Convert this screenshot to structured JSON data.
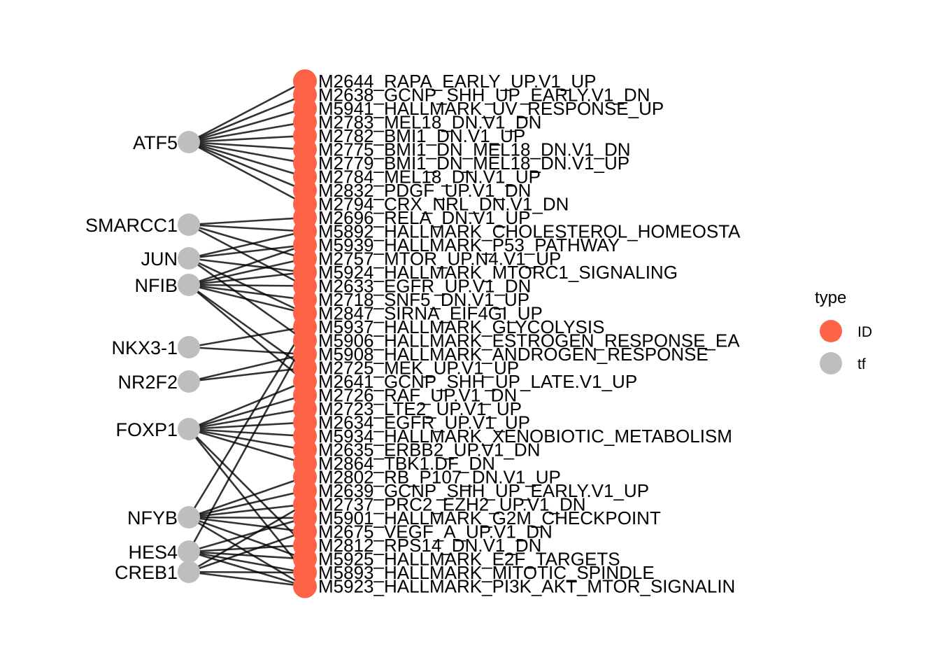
{
  "colors": {
    "id": "#FF6347",
    "tf": "#BEBEBE",
    "edge": "#000000"
  },
  "legend": {
    "title": "type",
    "items": [
      {
        "label": "ID",
        "color": "#FF6347"
      },
      {
        "label": "tf",
        "color": "#BEBEBE"
      }
    ]
  },
  "tf_nodes": [
    "ATF5",
    "SMARCC1",
    "JUN",
    "NFIB",
    "NKX3-1",
    "NR2F2",
    "FOXP1",
    "NFYB",
    "HES4",
    "CREB1"
  ],
  "id_nodes": [
    "M2644_RAPA_EARLY_UP.V1_UP",
    "M2638_GCNP_SHH_UP_EARLY.V1_DN",
    "M5941_HALLMARK_UV_RESPONSE_UP",
    "M2783_MEL18_DN.V1_DN",
    "M2782_BMI1_DN.V1_UP",
    "M2775_BMI1_DN_MEL18_DN.V1_DN",
    "M2779_BMI1_DN_MEL18_DN.V1_UP",
    "M2784_MEL18_DN.V1_UP",
    "M2832_PDGF_UP.V1_DN",
    "M2794_CRX_NRL_DN.V1_DN",
    "M2696_RELA_DN.V1_UP",
    "M5892_HALLMARK_CHOLESTEROL_HOMEOSTA",
    "M5939_HALLMARK_P53_PATHWAY",
    "M2757_MTOR_UP.N4.V1_UP",
    "M5924_HALLMARK_MTORC1_SIGNALING",
    "M2633_EGFR_UP.V1_DN",
    "M2718_SNF5_DN.V1_UP",
    "M2847_SIRNA_EIF4GI_UP",
    "M5937_HALLMARK_GLYCOLYSIS",
    "M5906_HALLMARK_ESTROGEN_RESPONSE_EA",
    "M5908_HALLMARK_ANDROGEN_RESPONSE",
    "M2725_MEK_UP.V1_UP",
    "M2641_GCNP_SHH_UP_LATE.V1_UP",
    "M2726_RAF_UP.V1_DN",
    "M2723_LTE2_UP.V1_UP",
    "M2634_EGFR_UP.V1_UP",
    "M5934_HALLMARK_XENOBIOTIC_METABOLISM",
    "M2635_ERBB2_UP.V1_DN",
    "M2864_TBK1.DF_DN",
    "M2802_RB_P107_DN.V1_UP",
    "M2639_GCNP_SHH_UP_EARLY.V1_UP",
    "M2737_PRC2_EZH2_UP.V1_DN",
    "M5901_HALLMARK_G2M_CHECKPOINT",
    "M2675_VEGF_A_UP.V1_DN",
    "M2812_RPS14_DN.V1_DN",
    "M5925_HALLMARK_E2F_TARGETS",
    "M5893_HALLMARK_MITOTIC_SPINDLE",
    "M5923_HALLMARK_PI3K_AKT_MTOR_SIGNALIN"
  ],
  "edges": [
    [
      "ATF5",
      0
    ],
    [
      "ATF5",
      1
    ],
    [
      "ATF5",
      2
    ],
    [
      "ATF5",
      3
    ],
    [
      "ATF5",
      4
    ],
    [
      "ATF5",
      5
    ],
    [
      "ATF5",
      6
    ],
    [
      "ATF5",
      7
    ],
    [
      "ATF5",
      8
    ],
    [
      "ATF5",
      9
    ],
    [
      "SMARCC1",
      10
    ],
    [
      "SMARCC1",
      11
    ],
    [
      "SMARCC1",
      13
    ],
    [
      "SMARCC1",
      15
    ],
    [
      "JUN",
      11
    ],
    [
      "JUN",
      12
    ],
    [
      "JUN",
      14
    ],
    [
      "JUN",
      17
    ],
    [
      "JUN",
      19
    ],
    [
      "NFIB",
      12
    ],
    [
      "NFIB",
      13
    ],
    [
      "NFIB",
      14
    ],
    [
      "NFIB",
      15
    ],
    [
      "NFIB",
      16
    ],
    [
      "NFIB",
      17
    ],
    [
      "NFIB",
      21
    ],
    [
      "NFIB",
      22
    ],
    [
      "NKX3-1",
      18
    ],
    [
      "NKX3-1",
      20
    ],
    [
      "NR2F2",
      20
    ],
    [
      "NR2F2",
      21
    ],
    [
      "FOXP1",
      22
    ],
    [
      "FOXP1",
      23
    ],
    [
      "FOXP1",
      24
    ],
    [
      "FOXP1",
      25
    ],
    [
      "FOXP1",
      26
    ],
    [
      "FOXP1",
      27
    ],
    [
      "FOXP1",
      28
    ],
    [
      "FOXP1",
      34
    ],
    [
      "FOXP1",
      36
    ],
    [
      "NFYB",
      18
    ],
    [
      "NFYB",
      29
    ],
    [
      "NFYB",
      30
    ],
    [
      "NFYB",
      31
    ],
    [
      "NFYB",
      32
    ],
    [
      "NFYB",
      33
    ],
    [
      "NFYB",
      35
    ],
    [
      "NFYB",
      37
    ],
    [
      "HES4",
      19
    ],
    [
      "HES4",
      32
    ],
    [
      "HES4",
      34
    ],
    [
      "HES4",
      35
    ],
    [
      "HES4",
      36
    ],
    [
      "HES4",
      37
    ],
    [
      "CREB1",
      31
    ],
    [
      "CREB1",
      33
    ],
    [
      "CREB1",
      36
    ],
    [
      "CREB1",
      37
    ]
  ]
}
